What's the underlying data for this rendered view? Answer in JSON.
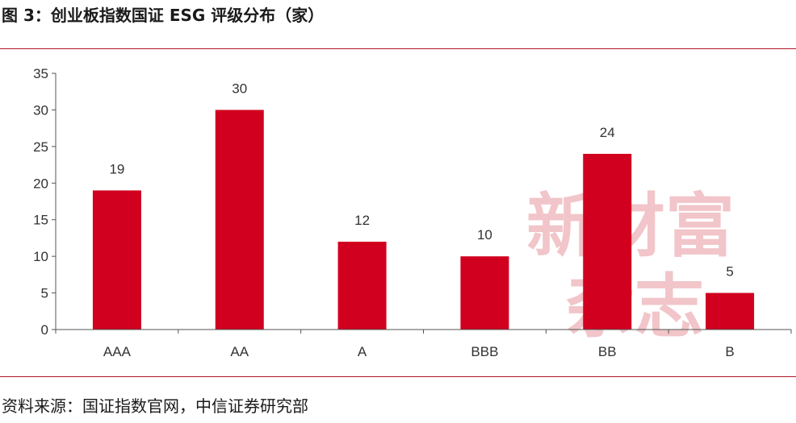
{
  "figure": {
    "title": "图 3：创业板指数国证 ESG 评级分布（家）",
    "source": "资料来源：国证指数官网，中信证券研究部"
  },
  "watermark": {
    "line1": "新财富",
    "line2": "杂志"
  },
  "chart_data": {
    "type": "bar",
    "title": "",
    "xlabel": "",
    "ylabel": "",
    "categories": [
      "AAA",
      "AA",
      "A",
      "BBB",
      "BB",
      "B"
    ],
    "values": [
      19,
      30,
      12,
      10,
      24,
      5
    ],
    "ylim": [
      0,
      35
    ],
    "yticks": [
      0,
      5,
      10,
      15,
      20,
      25,
      30,
      35
    ],
    "grid": false,
    "legend": "none",
    "bar_color": "#d1001f",
    "data_labels": true
  }
}
